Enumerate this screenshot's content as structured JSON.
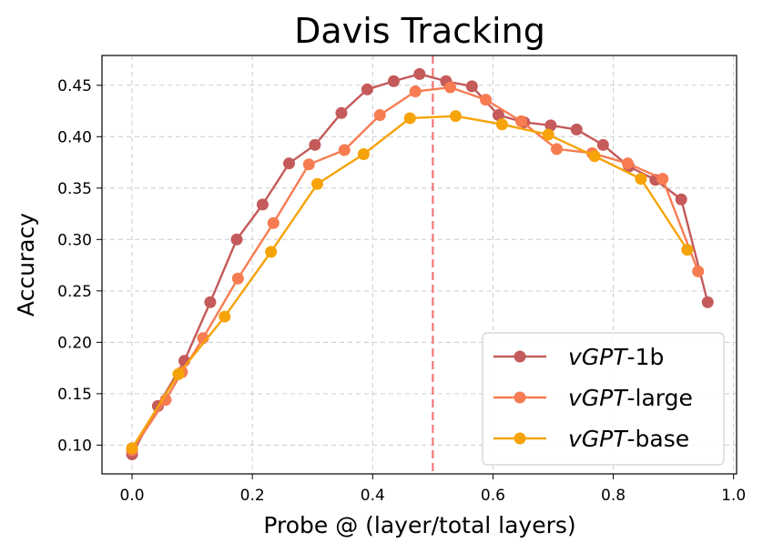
{
  "chart_data": {
    "type": "line",
    "title": "Davis Tracking",
    "xlabel": "Probe @ (layer/total layers)",
    "ylabel": "Accuracy",
    "xlim": [
      -0.05,
      1.005
    ],
    "ylim": [
      0.072,
      0.479
    ],
    "xticks": [
      "0.0",
      "0.2",
      "0.4",
      "0.6",
      "0.8",
      "1.0"
    ],
    "yticks": [
      "0.10",
      "0.15",
      "0.20",
      "0.25",
      "0.30",
      "0.35",
      "0.40",
      "0.45"
    ],
    "grid": true,
    "legend_position": "bottom-right",
    "reference_line": {
      "x": 0.5,
      "style": "dashed",
      "color": "#f07878"
    },
    "series": [
      {
        "name_prefix": "vGPT",
        "name_suffix": "-1b",
        "color": "#c45a5a",
        "x": [
          0.0,
          0.043,
          0.087,
          0.13,
          0.174,
          0.217,
          0.261,
          0.304,
          0.348,
          0.391,
          0.435,
          0.478,
          0.522,
          0.565,
          0.609,
          0.652,
          0.696,
          0.739,
          0.783,
          0.826,
          0.87,
          0.913,
          0.957
        ],
        "y": [
          0.091,
          0.138,
          0.182,
          0.239,
          0.3,
          0.334,
          0.374,
          0.392,
          0.423,
          0.446,
          0.454,
          0.461,
          0.454,
          0.449,
          0.421,
          0.414,
          0.411,
          0.407,
          0.392,
          0.371,
          0.358,
          0.339,
          0.239
        ]
      },
      {
        "name_prefix": "vGPT",
        "name_suffix": "-large",
        "color": "#f77c52",
        "x": [
          0.0,
          0.056,
          0.083,
          0.118,
          0.176,
          0.235,
          0.294,
          0.353,
          0.412,
          0.471,
          0.529,
          0.588,
          0.647,
          0.706,
          0.765,
          0.824,
          0.882,
          0.941
        ],
        "y": [
          0.095,
          0.144,
          0.171,
          0.204,
          0.262,
          0.316,
          0.373,
          0.387,
          0.421,
          0.444,
          0.448,
          0.436,
          0.415,
          0.388,
          0.384,
          0.374,
          0.359,
          0.269
        ]
      },
      {
        "name_prefix": "vGPT",
        "name_suffix": "-base",
        "color": "#f6a30a",
        "x": [
          0.0,
          0.077,
          0.154,
          0.231,
          0.308,
          0.385,
          0.462,
          0.538,
          0.615,
          0.692,
          0.769,
          0.846,
          0.923
        ],
        "y": [
          0.097,
          0.169,
          0.225,
          0.288,
          0.354,
          0.383,
          0.418,
          0.42,
          0.412,
          0.402,
          0.381,
          0.359,
          0.29
        ]
      }
    ]
  }
}
